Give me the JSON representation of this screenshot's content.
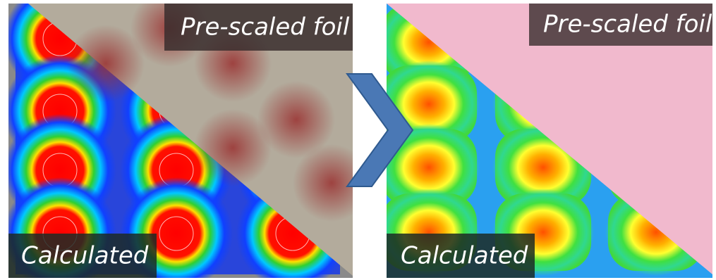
{
  "panels": [
    {
      "top_label": "Pre-scaled foil",
      "bottom_label": "Calculated"
    },
    {
      "top_label": "Pre-scaled foil",
      "bottom_label": "Calculated"
    }
  ]
}
